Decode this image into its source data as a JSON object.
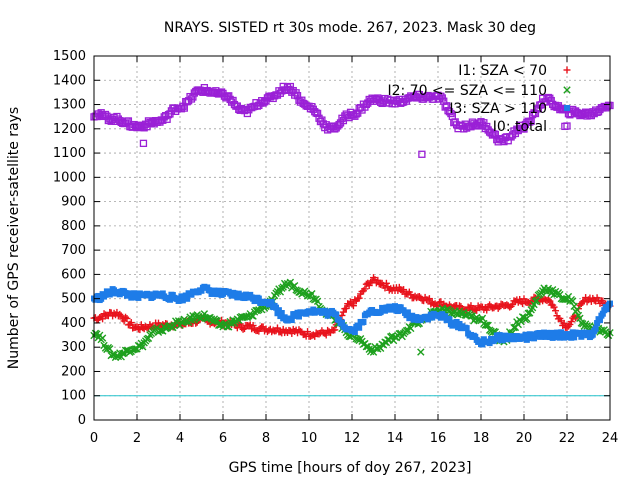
{
  "chart_data": {
    "type": "scatter",
    "title": "NRAYS. SISTED rt 30s mode. 267, 2023. Mask 30 deg",
    "xlabel": "GPS time [hours of doy 267, 2023]",
    "ylabel": "Number of GPS receiver-satellite rays",
    "xlim": [
      0,
      24
    ],
    "ylim": [
      0,
      1500
    ],
    "x_ticks": [
      0,
      2,
      4,
      6,
      8,
      10,
      12,
      14,
      16,
      18,
      20,
      22,
      24
    ],
    "y_ticks": [
      0,
      100,
      200,
      300,
      400,
      500,
      600,
      700,
      800,
      900,
      1000,
      1100,
      1200,
      1300,
      1400,
      1500
    ],
    "grid": true,
    "legend_position": "top-right",
    "threshold_line": {
      "value": 100,
      "color": "#22c2cc"
    },
    "series": [
      {
        "name": "I1: SZA < 70",
        "marker": "+",
        "color": "#e8131c",
        "x": [
          0,
          1,
          2,
          3,
          4,
          5,
          6,
          7,
          8,
          9,
          10,
          11,
          12,
          13,
          14,
          15,
          16,
          17,
          18,
          19,
          20,
          21,
          22,
          23,
          24
        ],
        "values": [
          420,
          440,
          380,
          390,
          395,
          410,
          400,
          385,
          375,
          370,
          355,
          360,
          480,
          575,
          540,
          510,
          480,
          460,
          460,
          470,
          490,
          500,
          390,
          500,
          480
        ]
      },
      {
        "name": "I2: 70 <= SZA <= 110",
        "marker": "x",
        "color": "#1ea01e",
        "x": [
          0,
          1,
          2,
          3,
          4,
          5,
          6,
          7,
          8,
          9,
          10,
          11,
          12,
          13,
          14,
          15,
          16,
          17,
          18,
          19,
          20,
          21,
          22,
          23,
          24
        ],
        "values": [
          360,
          265,
          300,
          370,
          400,
          430,
          390,
          420,
          470,
          560,
          520,
          430,
          350,
          290,
          340,
          400,
          450,
          440,
          410,
          330,
          420,
          540,
          500,
          380,
          360
        ],
        "outliers": [
          {
            "x": 15.2,
            "y": 280
          }
        ]
      },
      {
        "name": "I3: SZA > 110",
        "marker": "square",
        "color": "#1e7ce8",
        "x": [
          0,
          1,
          2,
          3,
          4,
          5,
          6,
          7,
          8,
          9,
          10,
          11,
          12,
          13,
          14,
          15,
          16,
          17,
          18,
          19,
          20,
          21,
          22,
          23,
          24
        ],
        "values": [
          500,
          530,
          510,
          515,
          500,
          540,
          520,
          510,
          490,
          420,
          450,
          440,
          370,
          450,
          460,
          420,
          430,
          390,
          320,
          340,
          340,
          350,
          350,
          350,
          470
        ]
      },
      {
        "name": "I0: total",
        "marker": "square-open",
        "color": "#9a20d6",
        "x": [
          0,
          1,
          2,
          3,
          4,
          5,
          6,
          7,
          8,
          9,
          10,
          11,
          12,
          13,
          14,
          15,
          16,
          17,
          18,
          19,
          20,
          21,
          22,
          23,
          24
        ],
        "values": [
          1260,
          1240,
          1210,
          1230,
          1290,
          1360,
          1340,
          1270,
          1320,
          1370,
          1290,
          1200,
          1260,
          1320,
          1310,
          1330,
          1330,
          1210,
          1220,
          1150,
          1210,
          1320,
          1270,
          1260,
          1300
        ],
        "outliers": [
          {
            "x": 15.25,
            "y": 1095
          },
          {
            "x": 2.3,
            "y": 1140
          },
          {
            "x": 21.9,
            "y": 1210
          }
        ]
      }
    ]
  }
}
